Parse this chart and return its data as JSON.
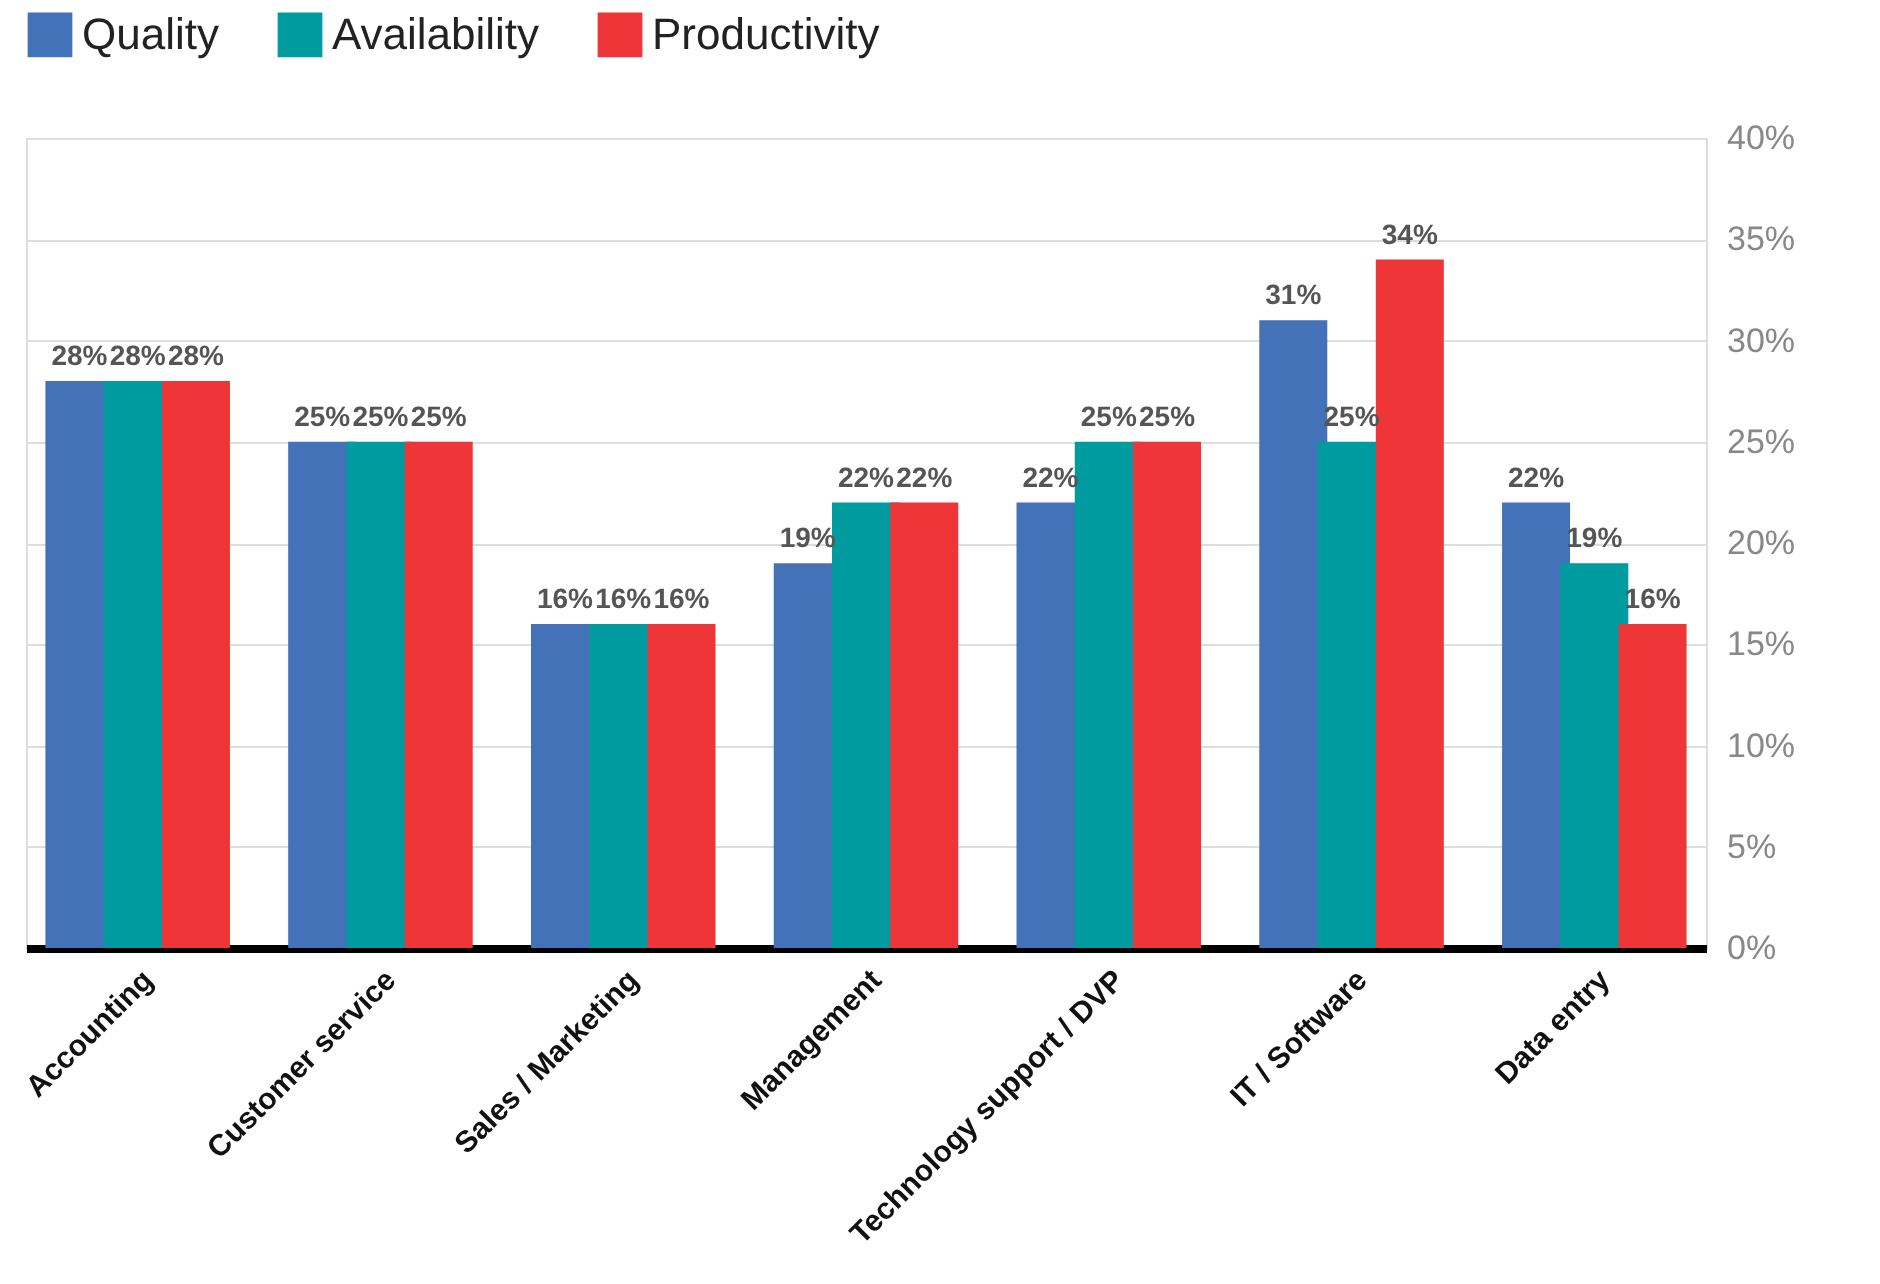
{
  "chart_data": {
    "type": "bar",
    "categories": [
      "Accounting",
      "Customer service",
      "Sales / Marketing",
      "Management",
      "Technology support / DVP",
      "IT / Software",
      "Data entry"
    ],
    "series": [
      {
        "name": "Quality",
        "color": "#4472b8",
        "values": [
          28,
          25,
          16,
          19,
          22,
          31,
          22
        ],
        "value_labels": [
          "28%",
          "25%",
          "16%",
          "19%",
          "22%",
          "31%",
          "22%"
        ]
      },
      {
        "name": "Availability",
        "color": "#009b9e",
        "values": [
          28,
          25,
          16,
          22,
          25,
          25,
          19
        ],
        "value_labels": [
          "28%",
          "25%",
          "16%",
          "22%",
          "25%",
          "25%",
          "19%"
        ]
      },
      {
        "name": "Productivity",
        "color": "#ee3537",
        "values": [
          28,
          25,
          16,
          22,
          25,
          34,
          16
        ],
        "value_labels": [
          "28%",
          "25%",
          "16%",
          "22%",
          "25%",
          "34%",
          "16%"
        ]
      }
    ],
    "ylim": [
      0,
      40
    ],
    "yticks": [
      {
        "value": 0,
        "label": "0%"
      },
      {
        "value": 5,
        "label": "5%"
      },
      {
        "value": 10,
        "label": "10%"
      },
      {
        "value": 15,
        "label": "15%"
      },
      {
        "value": 20,
        "label": "20%"
      },
      {
        "value": 25,
        "label": "25%"
      },
      {
        "value": 30,
        "label": "30%"
      },
      {
        "value": 35,
        "label": "35%"
      },
      {
        "value": 40,
        "label": "40%"
      }
    ],
    "grid": "y",
    "legend": "top left"
  }
}
